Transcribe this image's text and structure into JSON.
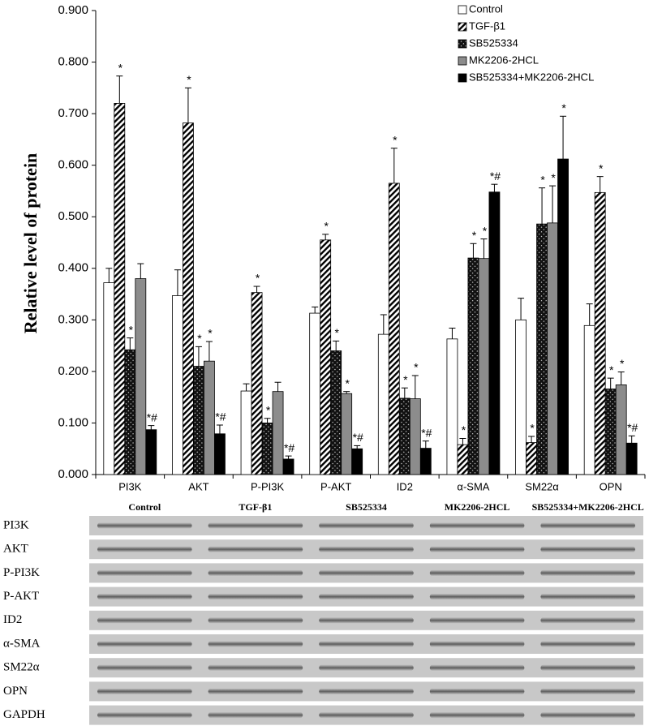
{
  "chart_data": {
    "type": "bar",
    "y_label": "Relative level of protein",
    "categories": [
      "PI3K",
      "AKT",
      "P-PI3K",
      "P-AKT",
      "ID2",
      "α-SMA",
      "SM22α",
      "OPN"
    ],
    "ylim": [
      0,
      0.9
    ],
    "yticks": [
      {
        "value": 0,
        "label": "0.000"
      },
      {
        "value": 0.1,
        "label": "0.100"
      },
      {
        "value": 0.2,
        "label": "0.200"
      },
      {
        "value": 0.3,
        "label": "0.300"
      },
      {
        "value": 0.4,
        "label": "0.400"
      },
      {
        "value": 0.5,
        "label": "0.500"
      },
      {
        "value": 0.6,
        "label": "0.600"
      },
      {
        "value": 0.7,
        "label": "0.700"
      },
      {
        "value": 0.8,
        "label": "0.800"
      },
      {
        "value": 0.9,
        "label": "0.900"
      }
    ],
    "legend": "top-right",
    "series": [
      {
        "name": "Control",
        "color": "#ffffff",
        "pattern": "solid",
        "values": [
          0.372,
          0.347,
          0.162,
          0.313,
          0.272,
          0.263,
          0.3,
          0.289
        ],
        "errors": [
          0.028,
          0.05,
          0.014,
          0.012,
          0.038,
          0.021,
          0.042,
          0.042
        ],
        "annotations": [
          null,
          null,
          null,
          null,
          null,
          null,
          null,
          null
        ]
      },
      {
        "name": "TGF-β1",
        "color": "#000000",
        "pattern": "diagonal",
        "values": [
          0.72,
          0.682,
          0.353,
          0.455,
          0.565,
          0.058,
          0.062,
          0.547
        ],
        "errors": [
          0.053,
          0.068,
          0.012,
          0.011,
          0.068,
          0.012,
          0.012,
          0.031
        ],
        "annotations": [
          "*",
          "*",
          "*",
          "*",
          "*",
          "*",
          "*",
          "*"
        ]
      },
      {
        "name": "SB525334",
        "color": "#222222",
        "pattern": "crosshatch",
        "values": [
          0.242,
          0.21,
          0.1,
          0.24,
          0.148,
          0.42,
          0.486,
          0.166
        ],
        "errors": [
          0.023,
          0.038,
          0.009,
          0.019,
          0.02,
          0.028,
          0.07,
          0.021
        ],
        "annotations": [
          "*",
          "*",
          "*",
          "*",
          "*",
          "*",
          "*",
          "*"
        ]
      },
      {
        "name": "MK2206-2HCL",
        "color": "#8c8c8c",
        "pattern": "solid",
        "values": [
          0.38,
          0.22,
          0.161,
          0.157,
          0.147,
          0.419,
          0.488,
          0.174
        ],
        "errors": [
          0.029,
          0.038,
          0.018,
          0.004,
          0.045,
          0.038,
          0.072,
          0.025
        ],
        "annotations": [
          null,
          "*",
          null,
          "*",
          "*",
          "*",
          "*",
          "*"
        ]
      },
      {
        "name": "SB525334+MK2206-2HCL",
        "color": "#000000",
        "pattern": "solid",
        "values": [
          0.087,
          0.079,
          0.03,
          0.05,
          0.051,
          0.548,
          0.612,
          0.061
        ],
        "errors": [
          0.008,
          0.017,
          0.006,
          0.006,
          0.014,
          0.015,
          0.083,
          0.014
        ],
        "annotations": [
          "*#",
          "*#",
          "*#",
          "*#",
          "*#",
          "*#",
          "*",
          "*#"
        ]
      }
    ]
  },
  "blot": {
    "lanes": [
      "Control",
      "TGF-β1",
      "SB525334",
      "MK2206-2HCL",
      "SB525334+MK2206-2HCL"
    ],
    "rows": [
      "PI3K",
      "AKT",
      "P-PI3K",
      "P-AKT",
      "ID2",
      "α-SMA",
      "SM22α",
      "OPN",
      "GAPDH"
    ]
  }
}
